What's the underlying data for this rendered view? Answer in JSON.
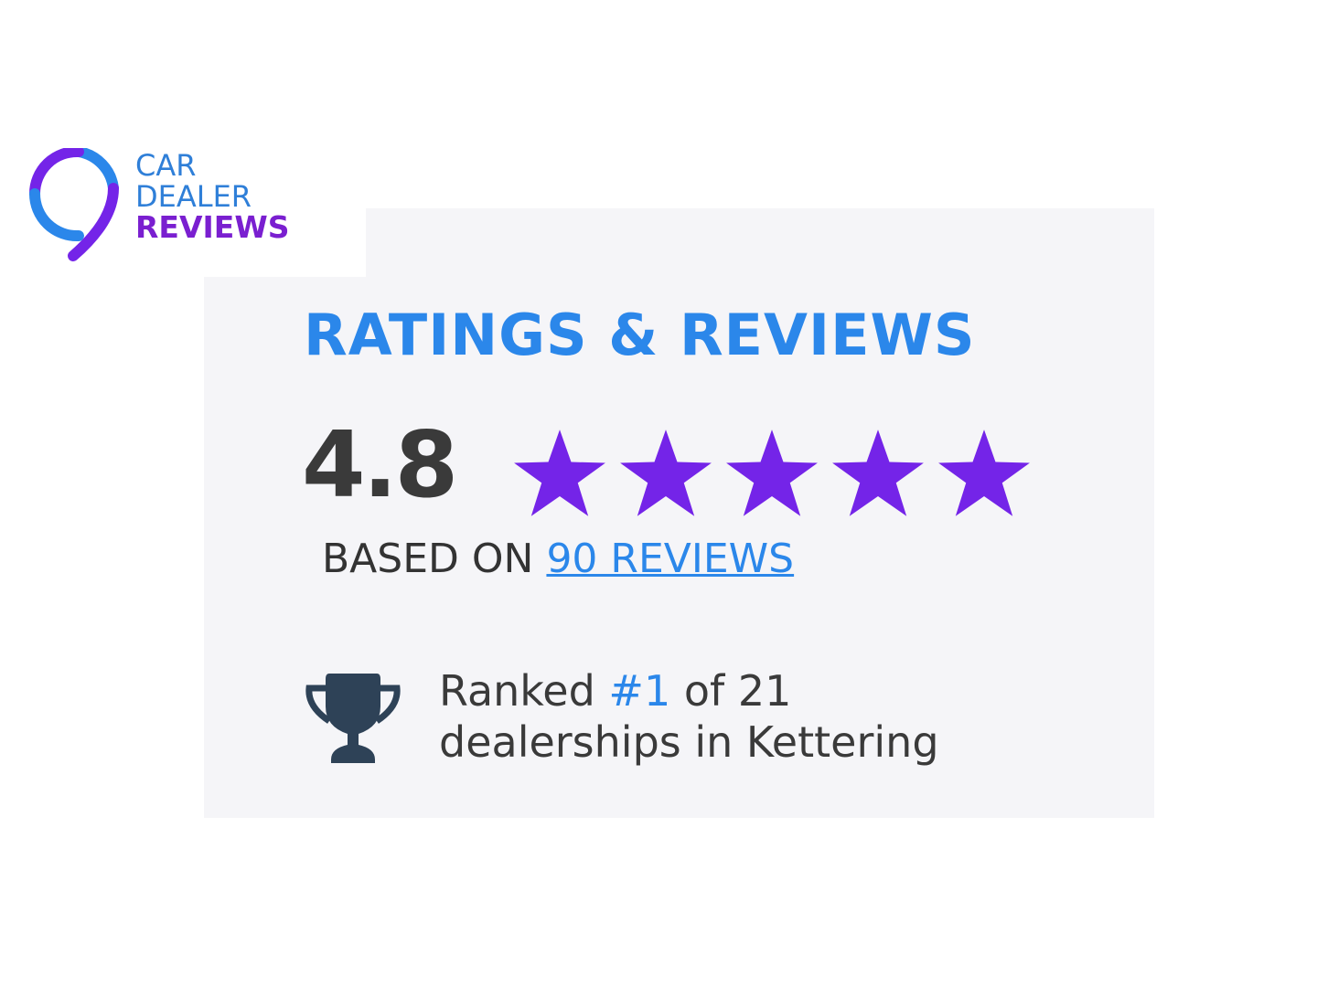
{
  "logo": {
    "line1": "CAR",
    "line2": "DEALER",
    "line3": "REVIEWS"
  },
  "widget": {
    "title": "RATINGS & REVIEWS",
    "score": "4.8",
    "stars": 5,
    "star_color": "#7424e8",
    "based_on_prefix": "BASED ON",
    "reviews_link": "90 REVIEWS",
    "rank_prefix": "Ranked",
    "rank_value": "#1",
    "rank_suffix": "of 21",
    "rank_line2": "dealerships in Kettering",
    "trophy_icon": "trophy-icon"
  }
}
